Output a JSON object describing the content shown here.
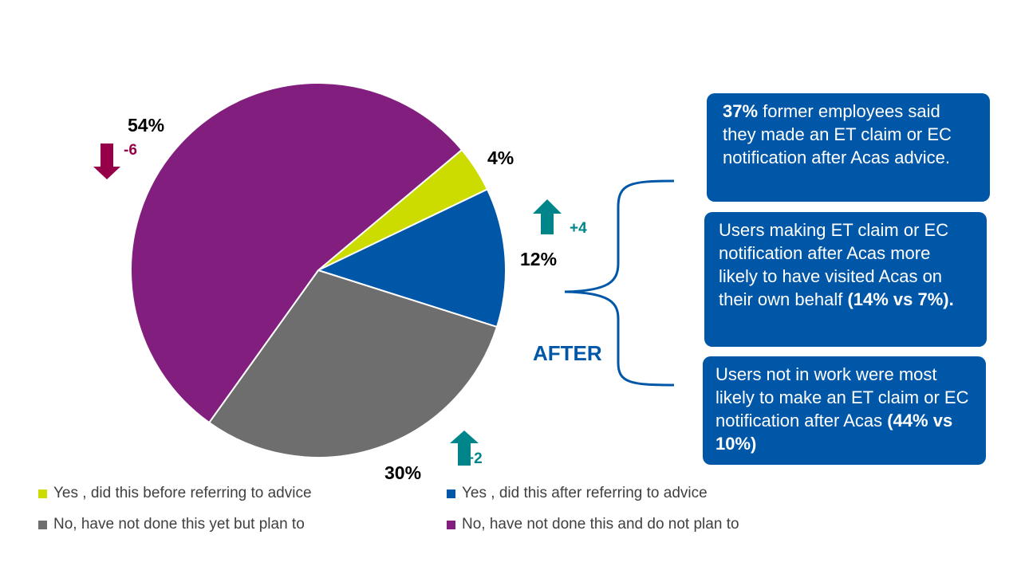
{
  "chart_data": {
    "type": "pie",
    "start_angle_deg": 50,
    "slices": [
      {
        "name": "Yes , did this before referring to advice",
        "value": 4,
        "label": "4%",
        "color": "#CCDC00"
      },
      {
        "name": "Yes , did this after referring to advice",
        "value": 12,
        "label": "12%",
        "color": "#0057A8",
        "change": "+4",
        "change_dir": "up"
      },
      {
        "name": "No, have not done this yet but plan to",
        "value": 30,
        "label": "30%",
        "color": "#6E6E6E",
        "change": "+2",
        "change_dir": "up"
      },
      {
        "name": "No, have not done this and do not  plan to",
        "value": 54,
        "label": "54%",
        "color": "#821E7D",
        "change": "-6",
        "change_dir": "down"
      }
    ],
    "legend": "bottom"
  },
  "colors": {
    "up": "#00868A",
    "down": "#960048",
    "accent": "#0057A8"
  },
  "annotation": {
    "after_label": "AFTER"
  },
  "boxes": [
    {
      "bold_lead": "37%",
      "text": " former employees said they made an ET claim or EC notification after Acas advice.",
      "bold_tail": ""
    },
    {
      "bold_lead": "",
      "text": "Users making ET claim or EC notification after Acas more likely to have visited Acas on their own behalf ",
      "bold_tail": "(14% vs 7%)."
    },
    {
      "bold_lead": "",
      "text": "Users not in work were most likely to make an ET claim or EC notification after Acas ",
      "bold_tail": "(44% vs 10%)"
    }
  ]
}
